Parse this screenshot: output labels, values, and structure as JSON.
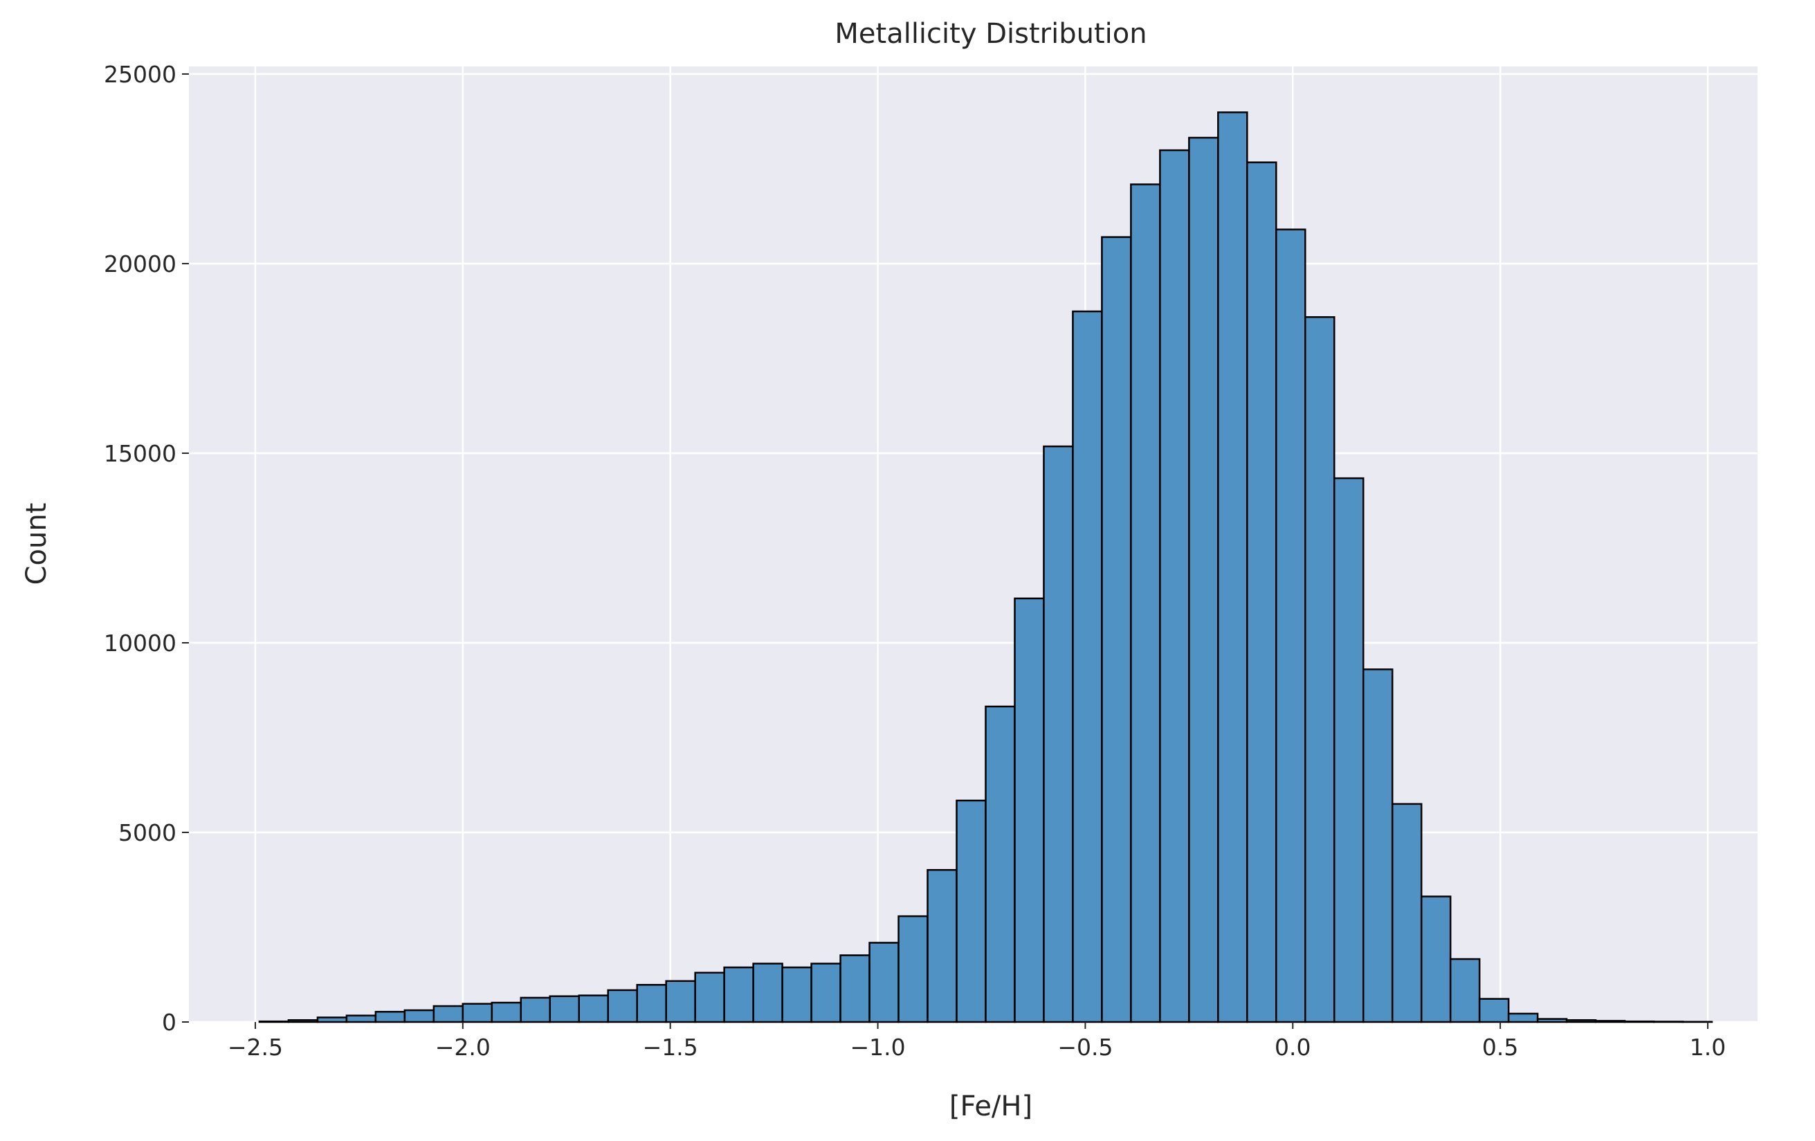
{
  "chart_data": {
    "type": "bar",
    "subtype": "histogram",
    "title": "Metallicity Distribution",
    "xlabel": "[Fe/H]",
    "ylabel": "Count",
    "xlim": [
      -2.66,
      1.12
    ],
    "ylim": [
      0,
      25200
    ],
    "grid": true,
    "legend": "none",
    "bin_start": -2.49,
    "bin_width": 0.07,
    "values": [
      15,
      50,
      120,
      170,
      270,
      310,
      420,
      480,
      510,
      640,
      680,
      700,
      840,
      980,
      1080,
      1300,
      1440,
      1540,
      1440,
      1540,
      1760,
      2090,
      2790,
      4010,
      5840,
      8320,
      11170,
      15180,
      18740,
      20700,
      22090,
      22990,
      23320,
      23990,
      22670,
      20900,
      18590,
      14340,
      9300,
      5750,
      3310,
      1660,
      610,
      220,
      80,
      50,
      30,
      15,
      10,
      5
    ],
    "x_ticks": [
      -2.5,
      -2.0,
      -1.5,
      -1.0,
      -0.5,
      0.0,
      0.5,
      1.0
    ],
    "x_tick_labels": [
      "−2.5",
      "−2.0",
      "−1.5",
      "−1.0",
      "−0.5",
      "0.0",
      "0.5",
      "1.0"
    ],
    "y_ticks": [
      0,
      5000,
      10000,
      15000,
      20000,
      25000
    ],
    "y_tick_labels": [
      "0",
      "5000",
      "10000",
      "15000",
      "20000",
      "25000"
    ],
    "colors": {
      "bar_fill": "#4f92c3",
      "bar_edge": "#000000",
      "plot_background": "#eaeaf2",
      "grid": "#ffffff",
      "text": "#262626"
    }
  }
}
